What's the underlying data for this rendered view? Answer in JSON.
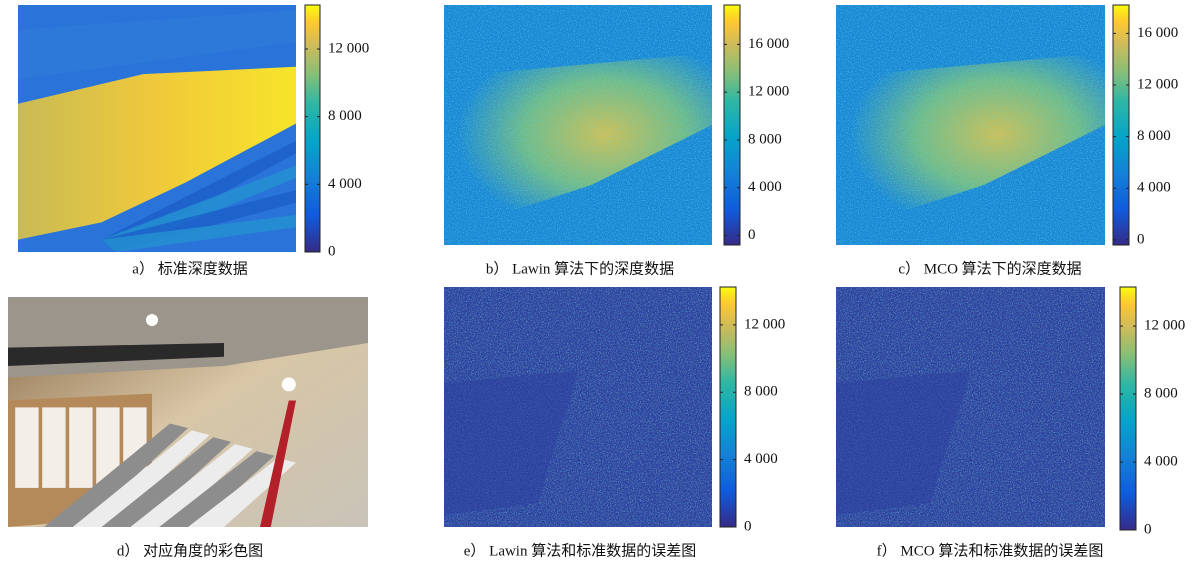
{
  "panels": [
    {
      "caption": "a） 标准深度数据",
      "colorbar": {
        "lim": [
          0,
          14600
        ],
        "ticks": [
          0,
          {
            "value": 4000,
            "label": "4 000"
          },
          {
            "value": 8000,
            "label": "8 000"
          },
          {
            "value": 12000,
            "label": "12 000"
          }
        ]
      }
    },
    {
      "caption": "b） Lawin 算法下的深度数据",
      "colorbar": {
        "lim": [
          -800,
          19300
        ],
        "ticks": [
          0,
          {
            "value": 4000,
            "label": "4 000"
          },
          {
            "value": 8000,
            "label": "8 000"
          },
          {
            "value": 12000,
            "label": "12 000"
          },
          {
            "value": 16000,
            "label": "16 000"
          }
        ]
      }
    },
    {
      "caption": "c） MCO 算法下的深度数据",
      "colorbar": {
        "lim": [
          -400,
          18200
        ],
        "ticks": [
          0,
          {
            "value": 4000,
            "label": "4 000"
          },
          {
            "value": 8000,
            "label": "8 000"
          },
          {
            "value": 12000,
            "label": "12 000"
          },
          {
            "value": 16000,
            "label": "16 000"
          }
        ]
      }
    },
    {
      "caption": "d） 对应角度的彩色图"
    },
    {
      "caption": "e） Lawin 算法和标准数据的误差图",
      "colorbar": {
        "lim": [
          0,
          14250
        ],
        "ticks": [
          0,
          {
            "value": 4000,
            "label": "4 000"
          },
          {
            "value": 8000,
            "label": "8 000"
          },
          {
            "value": 12000,
            "label": "12 000"
          }
        ]
      }
    },
    {
      "caption": "f） MCO 算法和标准数据的误差图",
      "colorbar": {
        "lim": [
          0,
          14300
        ],
        "ticks": [
          0,
          {
            "value": 4000,
            "label": "4 000"
          },
          {
            "value": 8000,
            "label": "8 000"
          },
          {
            "value": 12000,
            "label": "12 000"
          }
        ]
      }
    }
  ]
}
